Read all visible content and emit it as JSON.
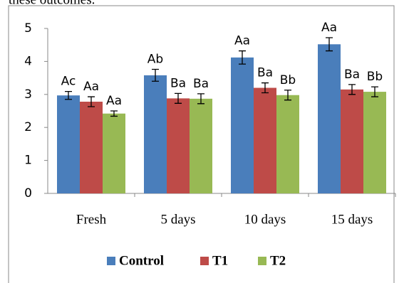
{
  "caption": "these outcomes.",
  "chart_data": {
    "type": "bar",
    "categories": [
      "Fresh",
      "5 days",
      "10 days",
      "15 days"
    ],
    "series": [
      {
        "name": "Control",
        "color": "#4a7ebb",
        "values": [
          2.97,
          3.58,
          4.12,
          4.52
        ],
        "errors": [
          0.12,
          0.18,
          0.2,
          0.2
        ],
        "annotations": [
          "Ac",
          "Ab",
          "Aa",
          "Aa"
        ]
      },
      {
        "name": "T1",
        "color": "#be4b48",
        "values": [
          2.78,
          2.88,
          3.2,
          3.15
        ],
        "errors": [
          0.15,
          0.15,
          0.15,
          0.15
        ],
        "annotations": [
          "Aa",
          "Ba",
          "Ba",
          "Ba"
        ]
      },
      {
        "name": "T2",
        "color": "#98b954",
        "values": [
          2.42,
          2.87,
          2.98,
          3.08
        ],
        "errors": [
          0.08,
          0.15,
          0.15,
          0.15
        ],
        "annotations": [
          "Aa",
          "Ba",
          "Bb",
          "Bb"
        ]
      }
    ],
    "ylim": [
      0,
      5
    ],
    "yticks": [
      0,
      1,
      2,
      3,
      4,
      5
    ],
    "grid": false,
    "legend": "bottom"
  }
}
